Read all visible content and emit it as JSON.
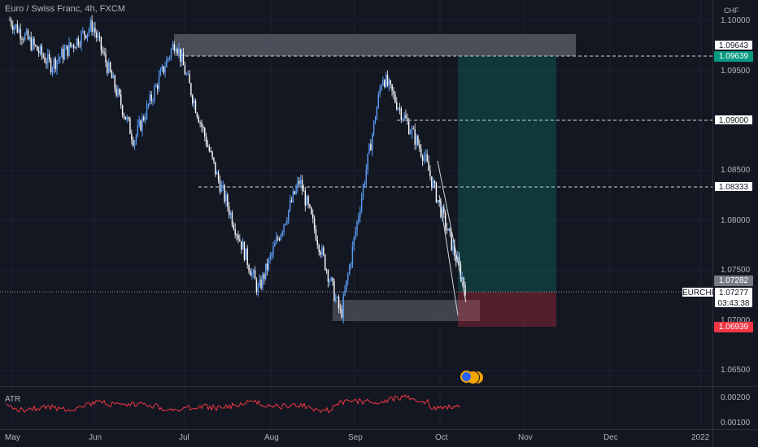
{
  "header": {
    "title": "Euro / Swiss Franc, 4h, FXCM"
  },
  "price_axis": {
    "currency": "CHF",
    "labels": [
      "1.10000",
      "1.09500",
      "1.09000",
      "1.08500",
      "1.08000",
      "1.07500",
      "1.07000",
      "1.06500"
    ],
    "tags": {
      "target": "1.09643",
      "entry_high": "1.09639",
      "level_1": "1.09000",
      "level_2": "1.08333",
      "stop_box_top": "1.07282",
      "symbol": "EURCHF",
      "last_price": "1.07277",
      "countdown": "03:43:38",
      "stop": "1.06939"
    }
  },
  "time_axis": {
    "labels": [
      "May",
      "Jun",
      "Jul",
      "Aug",
      "Sep",
      "Oct",
      "Nov",
      "Dec",
      "2022"
    ]
  },
  "indicator": {
    "name": "ATR",
    "axis_labels": [
      "0.00200",
      "0.00100"
    ]
  },
  "colors": {
    "background": "#131722",
    "candle": "#5b9cf6",
    "atr_line": "#f23645",
    "profit_zone": "#089981",
    "loss_zone": "#f23645",
    "supply_box": "#787b86"
  },
  "chart_data": {
    "type": "candlestick",
    "symbol": "EURCHF",
    "timeframe": "4h",
    "ylim": [
      1.063,
      1.1015
    ],
    "key_closes": [
      {
        "x": "May",
        "y": 1.0995
      },
      {
        "x": "late May",
        "y": 1.095
      },
      {
        "x": "Jun",
        "y": 1.099
      },
      {
        "x": "mid Jun",
        "y": 1.0875
      },
      {
        "x": "early Jul",
        "y": 1.0975
      },
      {
        "x": "mid Jul",
        "y": 1.084
      },
      {
        "x": "Aug",
        "y": 1.0725
      },
      {
        "x": "mid Aug",
        "y": 1.0835
      },
      {
        "x": "late Aug",
        "y": 1.07
      },
      {
        "x": "mid Sep",
        "y": 1.094
      },
      {
        "x": "late Sep",
        "y": 1.086
      },
      {
        "x": "Oct",
        "y": 1.0728
      }
    ],
    "levels": [
      1.09643,
      1.09639,
      1.09,
      1.08333,
      1.07282,
      1.06939
    ],
    "position": {
      "entry": 1.07282,
      "target": 1.09639,
      "stop": 1.06939
    }
  }
}
